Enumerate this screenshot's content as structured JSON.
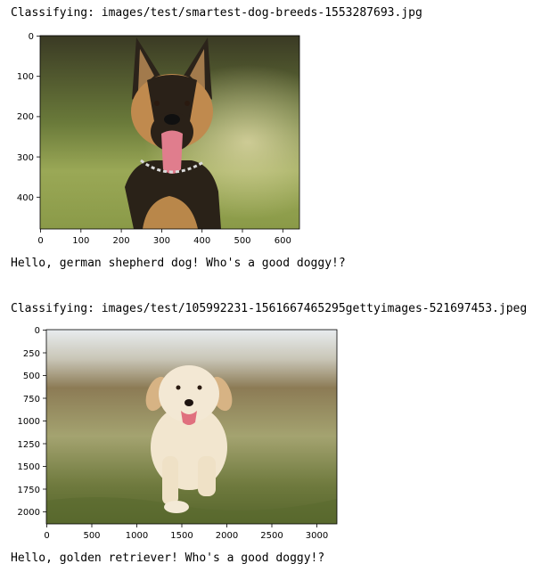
{
  "outputs": [
    {
      "classifying_text": "Classifying: images/test/smartest-dog-breeds-1553287693.jpg",
      "greeting_text": "Hello, german shepherd dog! Who's a good doggy!?",
      "plot": {
        "subject": "German shepherd sitting outdoors with tongue out",
        "x_ticks": [
          "0",
          "100",
          "200",
          "300",
          "400",
          "500",
          "600"
        ],
        "y_ticks": [
          "0",
          "100",
          "200",
          "300",
          "400"
        ]
      }
    },
    {
      "classifying_text": "Classifying: images/test/105992231-1561667465295gettyimages-521697453.jpeg",
      "greeting_text": "Hello, golden retriever! Who's a good doggy!?",
      "plot": {
        "subject": "Golden retriever puppy running on grass",
        "x_ticks": [
          "0",
          "500",
          "1000",
          "1500",
          "2000",
          "2500",
          "3000"
        ],
        "y_ticks": [
          "0",
          "250",
          "500",
          "750",
          "1000",
          "1250",
          "1500",
          "1750",
          "2000"
        ]
      }
    }
  ],
  "colors": {
    "text": "#000000",
    "background": "#ffffff"
  }
}
